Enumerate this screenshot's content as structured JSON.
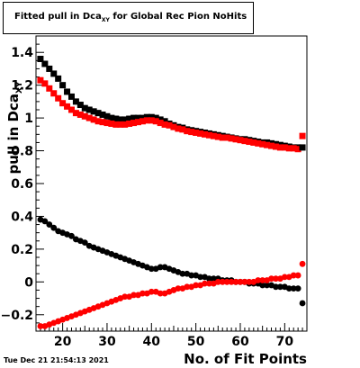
{
  "title": {
    "prefix": "Fitted pull in Dca",
    "sub": "XY",
    "suffix": " for Global Rec Pion NoHits"
  },
  "timestamp": "Tue Dec 21 21:54:13 2021",
  "chart_data": {
    "type": "scatter",
    "xlabel": "No. of Fit Points",
    "ylabel": "pull in Dca",
    "ylabel_sub": "XY",
    "xlim": [
      14,
      75
    ],
    "ylim": [
      -0.3,
      1.5
    ],
    "x_ticks": [
      20,
      30,
      40,
      50,
      60,
      70
    ],
    "y_ticks": [
      -0.2,
      0,
      0.2,
      0.4,
      0.6,
      0.8,
      1,
      1.2,
      1.4
    ],
    "y_tick_labels": [
      "−0.2",
      "0",
      "0.2",
      "0.4",
      "0.6",
      "0.8",
      "1",
      "1.2",
      "1.4"
    ],
    "grid": false,
    "legend": "none",
    "series": [
      {
        "color": "#000000",
        "marker": "square",
        "x": [
          15,
          16,
          17,
          18,
          19,
          20,
          21,
          22,
          23,
          24,
          25,
          26,
          27,
          28,
          29,
          30,
          31,
          32,
          33,
          34,
          35,
          36,
          37,
          38,
          39,
          40,
          41,
          42,
          43,
          44,
          45,
          46,
          47,
          48,
          49,
          50,
          51,
          52,
          53,
          54,
          55,
          56,
          57,
          58,
          59,
          60,
          61,
          62,
          63,
          64,
          65,
          66,
          67,
          68,
          69,
          70,
          71,
          72,
          73
        ],
        "y": [
          1.36,
          1.33,
          1.3,
          1.27,
          1.24,
          1.2,
          1.16,
          1.13,
          1.1,
          1.08,
          1.06,
          1.05,
          1.04,
          1.03,
          1.02,
          1.01,
          1.0,
          0.995,
          0.99,
          0.99,
          0.995,
          1.0,
          1.0,
          1.0,
          1.005,
          1.005,
          1.0,
          0.99,
          0.98,
          0.965,
          0.955,
          0.945,
          0.94,
          0.93,
          0.925,
          0.92,
          0.915,
          0.91,
          0.905,
          0.9,
          0.895,
          0.89,
          0.885,
          0.88,
          0.875,
          0.87,
          0.87,
          0.865,
          0.86,
          0.855,
          0.85,
          0.85,
          0.845,
          0.84,
          0.835,
          0.83,
          0.825,
          0.82,
          0.82
        ]
      },
      {
        "color": "#ff0000",
        "marker": "square",
        "x": [
          15,
          16,
          17,
          18,
          19,
          20,
          21,
          22,
          23,
          24,
          25,
          26,
          27,
          28,
          29,
          30,
          31,
          32,
          33,
          34,
          35,
          36,
          37,
          38,
          39,
          40,
          41,
          42,
          43,
          44,
          45,
          46,
          47,
          48,
          49,
          50,
          51,
          52,
          53,
          54,
          55,
          56,
          57,
          58,
          59,
          60,
          61,
          62,
          63,
          64,
          65,
          66,
          67,
          68,
          69,
          70,
          71,
          72,
          73
        ],
        "y": [
          1.23,
          1.21,
          1.18,
          1.15,
          1.12,
          1.09,
          1.07,
          1.05,
          1.03,
          1.02,
          1.01,
          1.0,
          0.99,
          0.98,
          0.975,
          0.97,
          0.965,
          0.96,
          0.96,
          0.96,
          0.965,
          0.97,
          0.975,
          0.98,
          0.985,
          0.985,
          0.98,
          0.97,
          0.96,
          0.955,
          0.945,
          0.935,
          0.93,
          0.92,
          0.915,
          0.91,
          0.905,
          0.9,
          0.895,
          0.89,
          0.885,
          0.88,
          0.88,
          0.875,
          0.87,
          0.865,
          0.86,
          0.855,
          0.85,
          0.845,
          0.84,
          0.835,
          0.83,
          0.825,
          0.82,
          0.82,
          0.815,
          0.815,
          0.81
        ]
      },
      {
        "color": "#000000",
        "marker": "circle",
        "x": [
          15,
          16,
          17,
          18,
          19,
          20,
          21,
          22,
          23,
          24,
          25,
          26,
          27,
          28,
          29,
          30,
          31,
          32,
          33,
          34,
          35,
          36,
          37,
          38,
          39,
          40,
          41,
          42,
          43,
          44,
          45,
          46,
          47,
          48,
          49,
          50,
          51,
          52,
          53,
          54,
          55,
          56,
          57,
          58,
          59,
          60,
          61,
          62,
          63,
          64,
          65,
          66,
          67,
          68,
          69,
          70,
          71,
          72,
          73
        ],
        "y": [
          0.38,
          0.37,
          0.35,
          0.33,
          0.31,
          0.3,
          0.29,
          0.28,
          0.26,
          0.25,
          0.24,
          0.22,
          0.21,
          0.2,
          0.19,
          0.18,
          0.17,
          0.16,
          0.15,
          0.14,
          0.13,
          0.12,
          0.11,
          0.1,
          0.09,
          0.08,
          0.08,
          0.09,
          0.09,
          0.08,
          0.07,
          0.06,
          0.05,
          0.05,
          0.04,
          0.04,
          0.03,
          0.03,
          0.02,
          0.02,
          0.02,
          0.01,
          0.01,
          0.01,
          0.0,
          0.0,
          0.0,
          -0.01,
          -0.01,
          -0.01,
          -0.02,
          -0.02,
          -0.02,
          -0.03,
          -0.03,
          -0.03,
          -0.04,
          -0.04,
          -0.04
        ]
      },
      {
        "color": "#ff0000",
        "marker": "circle",
        "x": [
          15,
          16,
          17,
          18,
          19,
          20,
          21,
          22,
          23,
          24,
          25,
          26,
          27,
          28,
          29,
          30,
          31,
          32,
          33,
          34,
          35,
          36,
          37,
          38,
          39,
          40,
          41,
          42,
          43,
          44,
          45,
          46,
          47,
          48,
          49,
          50,
          51,
          52,
          53,
          54,
          55,
          56,
          57,
          58,
          59,
          60,
          61,
          62,
          63,
          64,
          65,
          66,
          67,
          68,
          69,
          70,
          71,
          72,
          73
        ],
        "y": [
          -0.27,
          -0.27,
          -0.26,
          -0.25,
          -0.24,
          -0.23,
          -0.22,
          -0.21,
          -0.2,
          -0.19,
          -0.18,
          -0.17,
          -0.16,
          -0.15,
          -0.14,
          -0.13,
          -0.12,
          -0.11,
          -0.1,
          -0.09,
          -0.09,
          -0.08,
          -0.08,
          -0.07,
          -0.07,
          -0.06,
          -0.06,
          -0.07,
          -0.07,
          -0.06,
          -0.05,
          -0.04,
          -0.04,
          -0.03,
          -0.03,
          -0.02,
          -0.02,
          -0.01,
          -0.01,
          -0.01,
          0.0,
          0.0,
          0.0,
          0.0,
          0.0,
          0.0,
          0.0,
          0.0,
          0.0,
          0.01,
          0.01,
          0.01,
          0.02,
          0.02,
          0.02,
          0.03,
          0.03,
          0.04,
          0.04
        ]
      }
    ],
    "overflow_points": [
      {
        "x": 74,
        "y": 0.82,
        "color": "#000000",
        "marker": "square"
      },
      {
        "x": 74,
        "y": 0.89,
        "color": "#ff0000",
        "marker": "square"
      },
      {
        "x": 74,
        "y": -0.13,
        "color": "#000000",
        "marker": "circle"
      },
      {
        "x": 74,
        "y": 0.11,
        "color": "#ff0000",
        "marker": "circle"
      }
    ]
  }
}
